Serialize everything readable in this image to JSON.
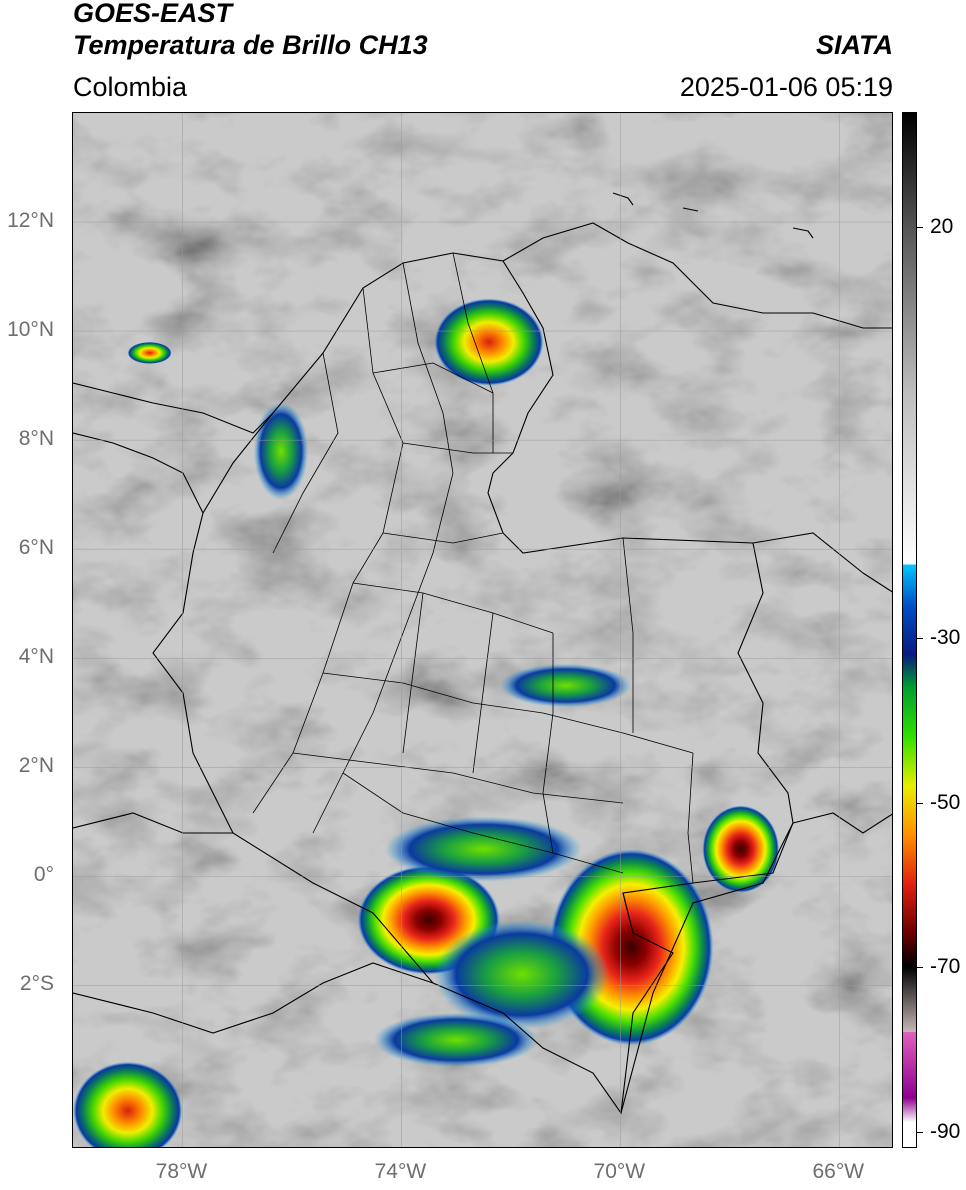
{
  "header": {
    "satellite": "GOES-EAST",
    "product": "Temperatura de Brillo CH13",
    "region": "Colombia",
    "organization": "SIATA",
    "timestamp": "2025-01-06 05:19"
  },
  "map": {
    "lon_range": [
      -80,
      -65
    ],
    "lat_range": [
      -5,
      14
    ],
    "lat_ticks": [
      {
        "value": 12,
        "label": "12°N"
      },
      {
        "value": 10,
        "label": "10°N"
      },
      {
        "value": 8,
        "label": "8°N"
      },
      {
        "value": 6,
        "label": "6°N"
      },
      {
        "value": 4,
        "label": "4°N"
      },
      {
        "value": 2,
        "label": "2°N"
      },
      {
        "value": 0,
        "label": "0°"
      },
      {
        "value": -2,
        "label": "2°S"
      }
    ],
    "lon_ticks": [
      {
        "value": -78,
        "label": "78°W"
      },
      {
        "value": -74,
        "label": "74°W"
      },
      {
        "value": -70,
        "label": "70°W"
      },
      {
        "value": -66,
        "label": "66°W"
      }
    ],
    "gridlines": true,
    "cloud_cells": [
      {
        "lon": -73.5,
        "lat": -0.8,
        "rx": 1.3,
        "ry": 1.0,
        "min_temp": -75
      },
      {
        "lon": -69.8,
        "lat": -1.3,
        "rx": 1.5,
        "ry": 1.8,
        "min_temp": -75
      },
      {
        "lon": -67.8,
        "lat": 0.5,
        "rx": 0.7,
        "ry": 0.8,
        "min_temp": -72
      },
      {
        "lon": -72.4,
        "lat": 9.8,
        "rx": 1.0,
        "ry": 0.8,
        "min_temp": -62
      },
      {
        "lon": -71.8,
        "lat": -1.8,
        "rx": 1.6,
        "ry": 1.0,
        "min_temp": -50
      },
      {
        "lon": -72.5,
        "lat": 0.5,
        "rx": 1.8,
        "ry": 0.6,
        "min_temp": -45
      },
      {
        "lon": -79.0,
        "lat": -4.3,
        "rx": 1.0,
        "ry": 0.9,
        "min_temp": -62
      },
      {
        "lon": -78.6,
        "lat": 9.6,
        "rx": 0.4,
        "ry": 0.2,
        "min_temp": -60
      },
      {
        "lon": -76.2,
        "lat": 7.8,
        "rx": 0.5,
        "ry": 0.9,
        "min_temp": -35
      },
      {
        "lon": -71.0,
        "lat": 3.5,
        "rx": 1.2,
        "ry": 0.4,
        "min_temp": -40
      },
      {
        "lon": -73.0,
        "lat": -3.0,
        "rx": 1.5,
        "ry": 0.5,
        "min_temp": -48
      }
    ]
  },
  "colorbar": {
    "range": [
      -92,
      34
    ],
    "ticks": [
      {
        "value": 20,
        "label": "20"
      },
      {
        "value": -30,
        "label": "-30"
      },
      {
        "value": -50,
        "label": "-50"
      },
      {
        "value": -70,
        "label": "-70"
      },
      {
        "value": -90,
        "label": "-90"
      }
    ]
  },
  "colors": {
    "land_border": "#000000",
    "grid": "#9a9a9a",
    "cloud_warm": "#8a8a8a"
  }
}
